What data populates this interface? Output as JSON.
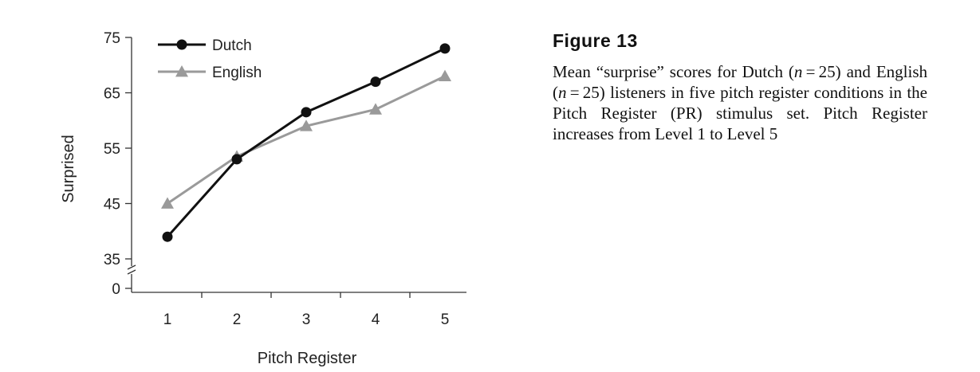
{
  "figure": {
    "title": "Figure 13",
    "caption_parts": [
      "Mean “surprise” scores for Dutch (",
      "n",
      " = 25) and English (",
      "n",
      " = 25) listeners in five pitch register conditions in the Pitch Register (PR) stimulus set. Pitch Register increases from Level 1 to Level 5"
    ]
  },
  "chart_data": {
    "type": "line",
    "xlabel": "Pitch Register",
    "ylabel": "Surprised",
    "x": [
      1,
      2,
      3,
      4,
      5
    ],
    "y_ticks": [
      0,
      35,
      45,
      55,
      65,
      75
    ],
    "ylim": [
      35,
      75
    ],
    "y_axis_break": true,
    "grid": false,
    "legend_position": "top-left",
    "series": [
      {
        "name": "Dutch",
        "values": [
          39,
          53,
          61.5,
          67,
          73
        ],
        "color": "#111111",
        "marker": "circle"
      },
      {
        "name": "English",
        "values": [
          45,
          53.5,
          59,
          62,
          68
        ],
        "color": "#9a9a9a",
        "marker": "triangle"
      }
    ]
  }
}
